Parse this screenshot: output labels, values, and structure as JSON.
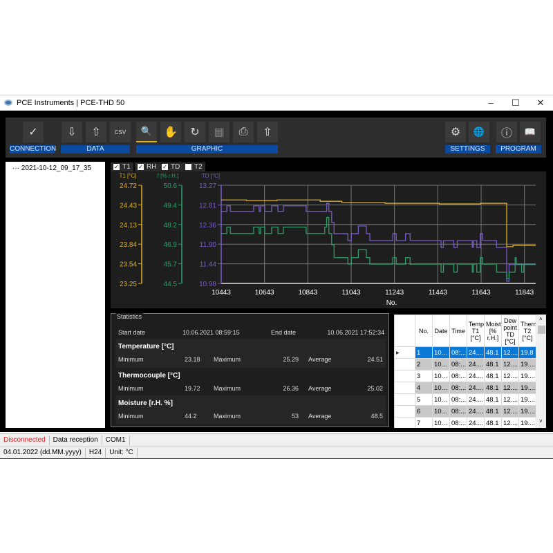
{
  "window": {
    "title": "PCE Instruments | PCE-THD 50",
    "minimize": "–",
    "maximize": "☐",
    "close": "✕"
  },
  "toolbar": {
    "groups": {
      "connection": "CONNECTION",
      "data": "DATA",
      "graphic": "GRAPHIC",
      "settings": "SETTINGS",
      "program": "PROGRAM"
    },
    "icons": {
      "connect": "✓",
      "import": "⇩",
      "export": "⇧",
      "csv": "CSV",
      "zoom": "🔍",
      "pan": "✋",
      "reset": "↻",
      "grid": "▦",
      "print": "⎙",
      "save": "⇧",
      "gear": "⚙",
      "globe": "🌐",
      "info": "ⓘ",
      "manual": "📖"
    }
  },
  "tree": {
    "items": [
      "2021-10-12_09_17_35"
    ]
  },
  "series_toggles": [
    {
      "label": "T1",
      "checked": true
    },
    {
      "label": "RH",
      "checked": true
    },
    {
      "label": "TD",
      "checked": true
    },
    {
      "label": "T2",
      "checked": false
    }
  ],
  "chart_data": {
    "type": "line",
    "xlabel": "No.",
    "xlim": [
      10443,
      11895
    ],
    "xticks": [
      10443,
      10643,
      10843,
      11043,
      11243,
      11443,
      11643,
      11843
    ],
    "grid": true,
    "axes": [
      {
        "id": "t1",
        "label": "T1 [°C]",
        "color": "#e0b028",
        "ylim": [
          23.25,
          24.72
        ],
        "ticks": [
          "24.72",
          "24.43",
          "24.13",
          "23.84",
          "23.54",
          "23.25"
        ]
      },
      {
        "id": "rh",
        "label": "f [% r.H.]",
        "color": "#2e9e6a",
        "ylim": [
          44.5,
          50.6
        ],
        "ticks": [
          "50.6",
          "49.4",
          "48.2",
          "46.9",
          "45.7",
          "44.5"
        ]
      },
      {
        "id": "td",
        "label": "TD [°C]",
        "color": "#7a5cc8",
        "ylim": [
          10.98,
          13.27
        ],
        "ticks": [
          "13.27",
          "12.81",
          "12.36",
          "11.90",
          "11.44",
          "10.98"
        ]
      }
    ],
    "series": [
      {
        "axis": "t1",
        "color": "#e0b028",
        "steps": [
          [
            10443,
            24.5
          ],
          [
            10560,
            24.49
          ],
          [
            10700,
            24.5
          ],
          [
            10900,
            24.48
          ],
          [
            11000,
            24.46
          ],
          [
            11200,
            24.45
          ],
          [
            11450,
            24.44
          ],
          [
            11640,
            24.45
          ],
          [
            11761,
            23.8
          ],
          [
            11790,
            23.82
          ],
          [
            11895,
            23.82
          ]
        ]
      },
      {
        "axis": "td",
        "color": "#7a5cc8",
        "steps": [
          [
            10443,
            12.66
          ],
          [
            10469,
            12.79
          ],
          [
            10485,
            12.66
          ],
          [
            10593,
            12.79
          ],
          [
            10618,
            12.66
          ],
          [
            10625,
            12.79
          ],
          [
            10644,
            12.66
          ],
          [
            10676,
            12.79
          ],
          [
            10705,
            12.66
          ],
          [
            10730,
            12.79
          ],
          [
            10835,
            12.66
          ],
          [
            10921,
            12.66
          ],
          [
            10930,
            12.85
          ],
          [
            10940,
            12.66
          ],
          [
            10953,
            12.4
          ],
          [
            10964,
            12.14
          ],
          [
            11028,
            11.98
          ],
          [
            11044,
            12.14
          ],
          [
            11076,
            12.32
          ],
          [
            11113,
            12.14
          ],
          [
            11129,
            11.98
          ],
          [
            11235,
            12.14
          ],
          [
            11251,
            11.98
          ],
          [
            11294,
            12.14
          ],
          [
            11315,
            11.98
          ],
          [
            11458,
            11.82
          ],
          [
            11469,
            11.98
          ],
          [
            11517,
            11.82
          ],
          [
            11533,
            11.98
          ],
          [
            11602,
            11.82
          ],
          [
            11607,
            11.98
          ],
          [
            11623,
            11.82
          ],
          [
            11639,
            12.14
          ],
          [
            11650,
            11.98
          ],
          [
            11714,
            11.82
          ],
          [
            11761,
            11.03
          ],
          [
            11772,
            11.42
          ],
          [
            11895,
            11.42
          ]
        ]
      },
      {
        "axis": "rh",
        "color": "#2e9e6a",
        "steps": [
          [
            10443,
            47.6
          ],
          [
            10469,
            48.0
          ],
          [
            10485,
            47.6
          ],
          [
            10593,
            48.0
          ],
          [
            10618,
            47.6
          ],
          [
            10625,
            48.0
          ],
          [
            10644,
            47.6
          ],
          [
            10676,
            48.0
          ],
          [
            10705,
            47.6
          ],
          [
            10730,
            48.0
          ],
          [
            10835,
            47.6
          ],
          [
            10921,
            48.0
          ],
          [
            10930,
            48.6
          ],
          [
            10940,
            47.6
          ],
          [
            10953,
            46.9
          ],
          [
            10964,
            46.1
          ],
          [
            11028,
            45.7
          ],
          [
            11044,
            46.1
          ],
          [
            11076,
            46.6
          ],
          [
            11113,
            46.1
          ],
          [
            11129,
            45.7
          ],
          [
            11235,
            46.1
          ],
          [
            11251,
            45.7
          ],
          [
            11294,
            46.1
          ],
          [
            11315,
            45.7
          ],
          [
            11458,
            45.2
          ],
          [
            11469,
            45.7
          ],
          [
            11517,
            45.2
          ],
          [
            11533,
            45.7
          ],
          [
            11602,
            45.2
          ],
          [
            11607,
            45.7
          ],
          [
            11623,
            45.2
          ],
          [
            11639,
            46.1
          ],
          [
            11650,
            45.7
          ],
          [
            11714,
            45.2
          ],
          [
            11761,
            44.8
          ],
          [
            11772,
            45.2
          ],
          [
            11800,
            46.1
          ],
          [
            11805,
            45.7
          ],
          [
            11830,
            45.2
          ],
          [
            11840,
            45.7
          ],
          [
            11895,
            45.7
          ]
        ]
      }
    ]
  },
  "statistics": {
    "title": "Statistics",
    "start_label": "Start date",
    "start": "10.06.2021 08:59:15",
    "end_label": "End date",
    "end": "10.06.2021 17:52:34",
    "min_label": "Minimum",
    "max_label": "Maximum",
    "avg_label": "Average",
    "groups": [
      {
        "name": "Temperature [°C]",
        "min": "23.18",
        "max": "25.29",
        "avg": "24.51"
      },
      {
        "name": "Thermocouple [°C]",
        "min": "19.72",
        "max": "26.36",
        "avg": "25.02"
      },
      {
        "name": "Moisture [r.H. %]",
        "min": "44.2",
        "max": "53",
        "avg": "48.5"
      }
    ]
  },
  "table": {
    "headers": [
      "No.",
      "Date",
      "Time",
      "Temp T1 [°C]",
      "Moist [% r.H.]",
      "Dew point TD [°C]",
      "Therm T2 [°C]"
    ],
    "rows": [
      [
        "1",
        "10...",
        "08:...",
        "24....",
        "48.1",
        "12....",
        "19.8"
      ],
      [
        "2",
        "10...",
        "08:...",
        "24....",
        "48.1",
        "12....",
        "19...."
      ],
      [
        "3",
        "10...",
        "08:...",
        "24....",
        "48.1",
        "12....",
        "19...."
      ],
      [
        "4",
        "10...",
        "08:...",
        "24....",
        "48.1",
        "12....",
        "19...."
      ],
      [
        "5",
        "10...",
        "08:...",
        "24....",
        "48.1",
        "12....",
        "19...."
      ],
      [
        "6",
        "10...",
        "08:...",
        "24....",
        "48.1",
        "12....",
        "19...."
      ],
      [
        "7",
        "10...",
        "08:...",
        "24....",
        "48.1",
        "12....",
        "19...."
      ]
    ],
    "selected_row": 0
  },
  "statusbar": {
    "connection": "Disconnected",
    "reception": "Data reception",
    "port": "COM1",
    "date": "04.01.2022 (dd.MM.yyyy)",
    "clock": "H24",
    "unit": "Unit: °C",
    "disconnected_color": "#e02020"
  }
}
